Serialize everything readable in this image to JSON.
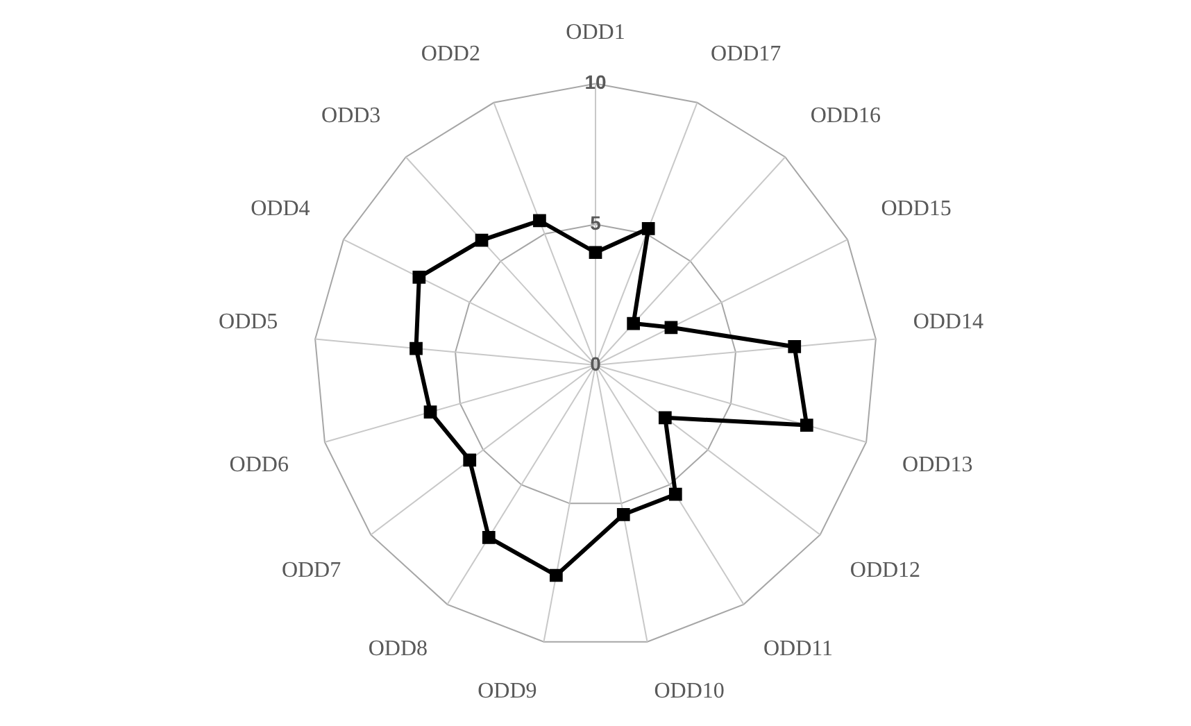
{
  "chart_data": {
    "type": "radar",
    "categories": [
      "ODD1",
      "ODD17",
      "ODD16",
      "ODD15",
      "ODD14",
      "ODD13",
      "ODD12",
      "ODD11",
      "ODD10",
      "ODD9",
      "ODD8",
      "ODD7",
      "ODD6",
      "ODD5",
      "ODD4",
      "ODD3",
      "ODD2"
    ],
    "series": [
      {
        "color": "#000000",
        "values": [
          4,
          5.2,
          2,
          3,
          7.1,
          7.8,
          3.1,
          5.4,
          5.4,
          7.6,
          7.2,
          5.6,
          6.1,
          6.4,
          7,
          6,
          5.5
        ]
      }
    ],
    "ylim": [
      0,
      10
    ],
    "yticks": [
      0,
      5,
      10
    ],
    "marker": "square",
    "grid": true,
    "legend": false
  }
}
